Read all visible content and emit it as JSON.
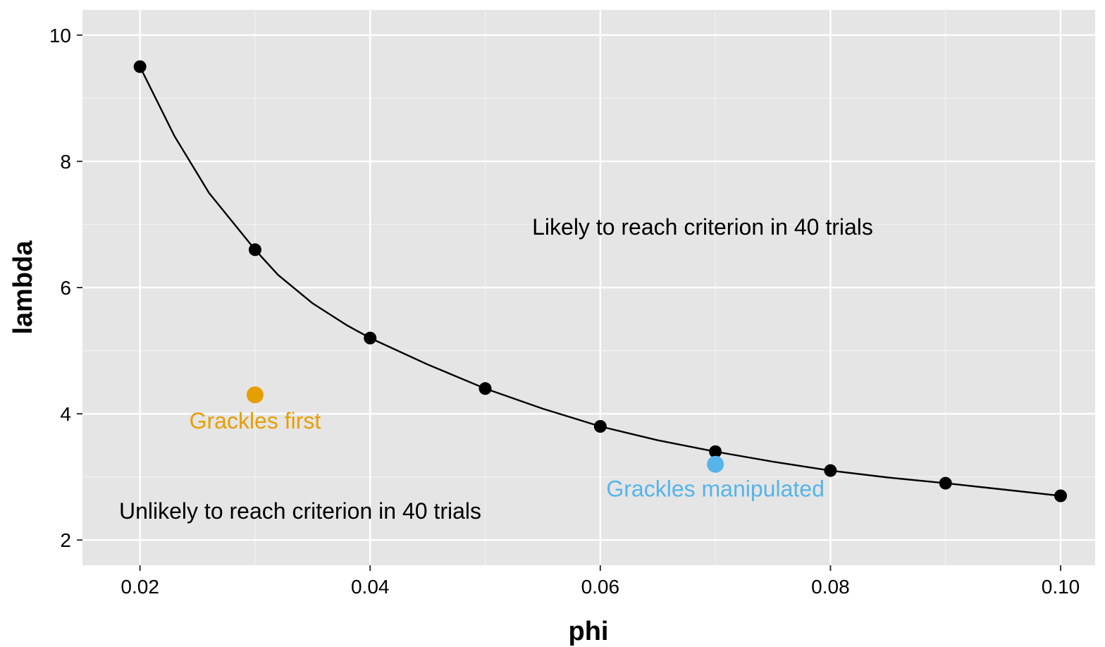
{
  "chart_data": {
    "type": "scatter",
    "xlabel": "phi",
    "ylabel": "lambda",
    "xlim": [
      0.015,
      0.103
    ],
    "ylim": [
      1.6,
      10.4
    ],
    "x_ticks": [
      "0.02",
      "0.04",
      "0.06",
      "0.08",
      "0.10"
    ],
    "x_tick_values": [
      0.02,
      0.04,
      0.06,
      0.08,
      0.1
    ],
    "y_ticks": [
      "2",
      "4",
      "6",
      "8",
      "10"
    ],
    "y_tick_values": [
      2,
      4,
      6,
      8,
      10
    ],
    "grid": true,
    "background": "#e5e5e5",
    "threshold_points": {
      "color": "#000000",
      "x": [
        0.02,
        0.03,
        0.04,
        0.05,
        0.06,
        0.07,
        0.08,
        0.09,
        0.1
      ],
      "y": [
        9.5,
        6.6,
        5.2,
        4.4,
        3.8,
        3.4,
        3.1,
        2.9,
        2.7
      ]
    },
    "threshold_curve": {
      "color": "#000000",
      "x": [
        0.02,
        0.023,
        0.026,
        0.03,
        0.032,
        0.035,
        0.038,
        0.04,
        0.045,
        0.05,
        0.055,
        0.06,
        0.065,
        0.07,
        0.075,
        0.08,
        0.085,
        0.09,
        0.095,
        0.1
      ],
      "y": [
        9.5,
        8.4,
        7.5,
        6.6,
        6.2,
        5.75,
        5.4,
        5.2,
        4.78,
        4.4,
        4.08,
        3.8,
        3.58,
        3.4,
        3.24,
        3.1,
        2.99,
        2.9,
        2.8,
        2.7
      ]
    },
    "groups": [
      {
        "name": "Grackles first",
        "x": 0.03,
        "y": 4.3,
        "color": "#e69f00"
      },
      {
        "name": "Grackles manipulated",
        "x": 0.07,
        "y": 3.2,
        "color": "#56b4e9"
      }
    ],
    "annotations": {
      "above": "Likely to reach criterion in 40 trials",
      "below": "Unlikely to reach criterion in 40 trials"
    }
  }
}
